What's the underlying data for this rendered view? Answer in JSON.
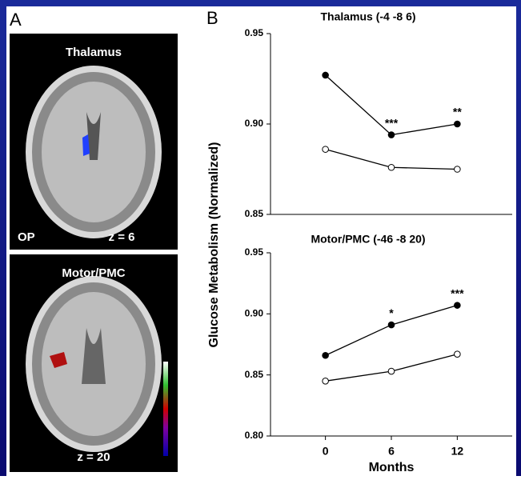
{
  "panel_a": {
    "label": "A",
    "images": [
      {
        "title": "Thalamus",
        "view": "OP",
        "slice": "z = 6"
      },
      {
        "title": "Motor/PMC",
        "slice": "z = 20"
      }
    ]
  },
  "panel_b": {
    "label": "B",
    "y_label": "Glucose Metabolism (Normalized)"
  },
  "chart_data": [
    {
      "type": "line",
      "title": "Thalamus (-4 -8 6)",
      "x": [
        0,
        6,
        12
      ],
      "xlim": [
        -5,
        17
      ],
      "ylim": [
        0.85,
        0.95
      ],
      "yticks": [
        {
          "value": 0.85,
          "label": "0.85"
        },
        {
          "value": 0.9,
          "label": "0.90"
        },
        {
          "value": 0.95,
          "label": "0.95"
        }
      ],
      "series": [
        {
          "color": "#000000",
          "marker": "filled",
          "values": [
            0.927,
            0.894,
            0.9
          ],
          "point_labels": [
            null,
            "***",
            "**"
          ]
        },
        {
          "color": "#000000",
          "marker": "open",
          "values": [
            0.886,
            0.876,
            0.875
          ]
        }
      ]
    },
    {
      "type": "line",
      "title": "Motor/PMC (-46 -8 20)",
      "x": [
        0,
        6,
        12
      ],
      "xlim": [
        -5,
        17
      ],
      "ylim": [
        0.8,
        0.95
      ],
      "xticks": [
        0,
        6,
        12
      ],
      "x_label": "Months",
      "yticks": [
        {
          "value": 0.8,
          "label": "0.80"
        },
        {
          "value": 0.85,
          "label": "0.85"
        },
        {
          "value": 0.9,
          "label": "0.90"
        },
        {
          "value": 0.95,
          "label": "0.95"
        }
      ],
      "series": [
        {
          "color": "#000000",
          "marker": "filled",
          "values": [
            0.866,
            0.891,
            0.907
          ],
          "point_labels": [
            null,
            "*",
            "***"
          ]
        },
        {
          "color": "#000000",
          "marker": "open",
          "values": [
            0.845,
            0.853,
            0.867
          ]
        }
      ]
    }
  ]
}
